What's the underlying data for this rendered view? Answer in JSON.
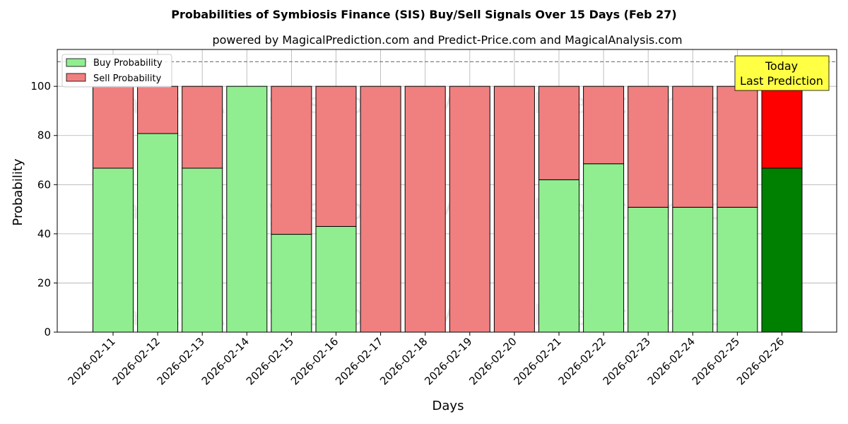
{
  "chart_data": {
    "type": "bar",
    "stacked": true,
    "title": "Probabilities of Symbiosis Finance (SIS) Buy/Sell Signals Over 15 Days (Feb 27)",
    "subtitle": "powered by MagicalPrediction.com and Predict-Price.com and MagicalAnalysis.com",
    "xlabel": "Days",
    "ylabel": "Probability",
    "ylim": [
      0,
      115
    ],
    "yticks": [
      0,
      20,
      40,
      60,
      80,
      100
    ],
    "grid": true,
    "legend_placement": "top-left",
    "reference_line": 110,
    "categories": [
      "2026-02-11",
      "2026-02-12",
      "2026-02-13",
      "2026-02-14",
      "2026-02-15",
      "2026-02-16",
      "2026-02-17",
      "2026-02-18",
      "2026-02-19",
      "2026-02-20",
      "2026-02-21",
      "2026-02-22",
      "2026-02-23",
      "2026-02-24",
      "2026-02-25",
      "2026-02-26"
    ],
    "series": [
      {
        "name": "Buy Probability",
        "color": "#90ee90",
        "values": [
          66.7,
          80.8,
          66.7,
          100,
          39.8,
          43.0,
          0,
          0,
          0,
          0,
          62.0,
          68.5,
          50.8,
          50.8,
          50.8,
          66.7
        ]
      },
      {
        "name": "Sell Probability",
        "color": "#f08080",
        "values": [
          33.3,
          19.2,
          33.3,
          0,
          60.2,
          57.0,
          100,
          100,
          100,
          100,
          38.0,
          31.5,
          49.2,
          49.2,
          49.2,
          33.3
        ]
      }
    ],
    "highlight": {
      "index": 15,
      "buy_color": "#008000",
      "sell_color": "#ff0000"
    },
    "annotation": {
      "line1": "Today",
      "line2": "Last Prediction",
      "color": "#ffff44"
    },
    "watermarks": [
      "MagicalAnalysis.com",
      "MagicalPrediction.com"
    ]
  }
}
